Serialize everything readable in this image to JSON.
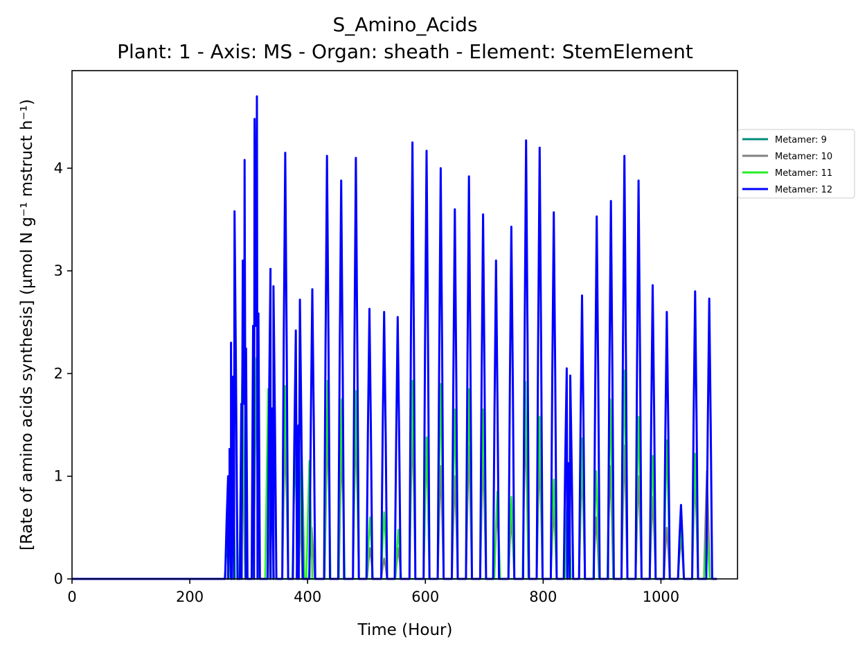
{
  "chart_data": {
    "type": "line",
    "title": "S_Amino_Acids",
    "subtitle": "Plant: 1 - Axis: MS - Organ: sheath - Element: StemElement",
    "xlabel": "Time (Hour)",
    "ylabel": "[Rate of amino acids synthesis] (µmol N g⁻¹ mstruct h⁻¹)",
    "xlim": [
      0,
      1130
    ],
    "ylim": [
      0,
      4.95
    ],
    "xticks": [
      "0",
      "200",
      "400",
      "600",
      "800",
      "1000"
    ],
    "yticks": [
      "0",
      "1",
      "2",
      "3",
      "4"
    ],
    "grid": false,
    "legend_position": "right, outside plot",
    "legend": [
      {
        "name": "Metamer: 9",
        "color": "#008B7A"
      },
      {
        "name": "Metamer: 10",
        "color": "#808080"
      },
      {
        "name": "Metamer: 11",
        "color": "#22EE22"
      },
      {
        "name": "Metamer: 12",
        "color": "#0000FF"
      }
    ],
    "series": [
      {
        "name": "Metamer: 9",
        "color": "#008B7A",
        "peaks": [
          [
            264,
            0.35
          ]
        ]
      },
      {
        "name": "Metamer: 10",
        "color": "#808080",
        "peaks": [
          [
            289,
            1.3
          ],
          [
            313,
            1.9
          ],
          [
            338,
            1.0
          ],
          [
            362,
            1.4
          ],
          [
            386,
            1.0
          ],
          [
            407,
            0.5
          ],
          [
            434,
            1.5
          ],
          [
            458,
            1.3
          ],
          [
            482,
            1.5
          ],
          [
            506,
            0.3
          ],
          [
            530,
            0.2
          ],
          [
            554,
            0.3
          ],
          [
            578,
            1.5
          ],
          [
            602,
            1.3
          ],
          [
            626,
            1.1
          ],
          [
            650,
            1.0
          ],
          [
            674,
            1.3
          ],
          [
            698,
            1.2
          ],
          [
            722,
            0.7
          ],
          [
            746,
            0.6
          ],
          [
            770,
            1.5
          ],
          [
            794,
            1.2
          ],
          [
            818,
            0.7
          ],
          [
            842,
            0.9
          ],
          [
            866,
            1.1
          ],
          [
            890,
            0.6
          ],
          [
            914,
            1.1
          ],
          [
            938,
            1.3
          ],
          [
            962,
            1.0
          ],
          [
            986,
            0.8
          ],
          [
            1010,
            0.5
          ],
          [
            1034,
            0.4
          ],
          [
            1058,
            1.0
          ],
          [
            1078,
            1.05
          ]
        ]
      },
      {
        "name": "Metamer: 11",
        "color": "#22EE22",
        "peaks": [
          [
            265,
            0.7
          ],
          [
            272,
            1.6
          ],
          [
            289,
            2.05
          ],
          [
            313,
            2.15
          ],
          [
            333,
            1.85
          ],
          [
            362,
            1.88
          ],
          [
            379,
            1.25
          ],
          [
            390,
            1.24
          ],
          [
            403,
            1.15
          ],
          [
            434,
            1.93
          ],
          [
            458,
            1.75
          ],
          [
            482,
            1.83
          ],
          [
            506,
            0.6
          ],
          [
            530,
            0.65
          ],
          [
            554,
            0.48
          ],
          [
            578,
            1.93
          ],
          [
            602,
            1.38
          ],
          [
            626,
            1.9
          ],
          [
            650,
            1.65
          ],
          [
            674,
            1.85
          ],
          [
            698,
            1.65
          ],
          [
            722,
            0.85
          ],
          [
            746,
            0.8
          ],
          [
            770,
            1.92
          ],
          [
            794,
            1.58
          ],
          [
            818,
            0.97
          ],
          [
            842,
            1.0
          ],
          [
            866,
            1.37
          ],
          [
            890,
            1.05
          ],
          [
            914,
            1.75
          ],
          [
            938,
            2.03
          ],
          [
            962,
            1.58
          ],
          [
            986,
            1.2
          ],
          [
            1010,
            1.35
          ],
          [
            1034,
            0.5
          ],
          [
            1058,
            1.22
          ],
          [
            1078,
            0.45
          ]
        ]
      },
      {
        "name": "Metamer: 12",
        "color": "#0000FF",
        "peaks": [
          [
            265,
            1.0
          ],
          [
            270,
            2.3
          ],
          [
            276,
            3.58
          ],
          [
            290,
            3.1
          ],
          [
            293,
            4.08
          ],
          [
            310,
            4.48
          ],
          [
            314,
            4.7
          ],
          [
            337,
            3.02
          ],
          [
            342,
            2.85
          ],
          [
            362,
            4.15
          ],
          [
            380,
            2.42
          ],
          [
            387,
            2.72
          ],
          [
            408,
            2.82
          ],
          [
            433,
            4.12
          ],
          [
            457,
            3.88
          ],
          [
            482,
            4.1
          ],
          [
            505,
            2.63
          ],
          [
            530,
            2.6
          ],
          [
            553,
            2.55
          ],
          [
            578,
            4.25
          ],
          [
            602,
            4.17
          ],
          [
            626,
            4.0
          ],
          [
            650,
            3.6
          ],
          [
            674,
            3.92
          ],
          [
            698,
            3.55
          ],
          [
            720,
            3.1
          ],
          [
            746,
            3.43
          ],
          [
            771,
            4.27
          ],
          [
            794,
            4.2
          ],
          [
            818,
            3.57
          ],
          [
            840,
            2.05
          ],
          [
            846,
            1.98
          ],
          [
            866,
            2.76
          ],
          [
            891,
            3.53
          ],
          [
            915,
            3.68
          ],
          [
            938,
            4.12
          ],
          [
            962,
            3.88
          ],
          [
            986,
            2.86
          ],
          [
            1010,
            2.6
          ],
          [
            1034,
            0.72
          ],
          [
            1058,
            2.8
          ],
          [
            1082,
            2.73
          ]
        ]
      }
    ]
  }
}
